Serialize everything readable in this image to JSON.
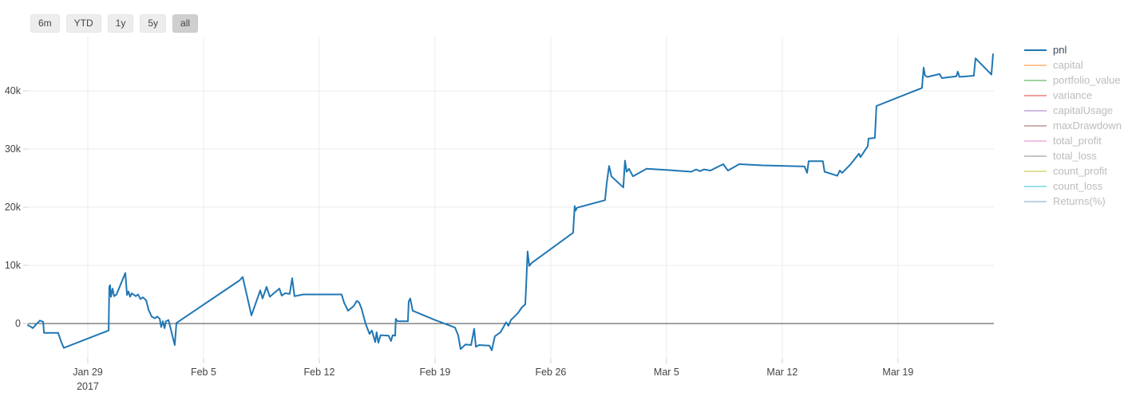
{
  "toolbar": {
    "buttons": [
      {
        "label": "6m",
        "selected": false
      },
      {
        "label": "YTD",
        "selected": false
      },
      {
        "label": "1y",
        "selected": false
      },
      {
        "label": "5y",
        "selected": false
      },
      {
        "label": "all",
        "selected": true
      }
    ]
  },
  "legend": {
    "items": [
      {
        "label": "pnl",
        "color": "#1f77b4",
        "active": true
      },
      {
        "label": "capital",
        "color": "#ff7f0e",
        "active": false
      },
      {
        "label": "portfolio_value",
        "color": "#2ca02c",
        "active": false
      },
      {
        "label": "variance",
        "color": "#d62728",
        "active": false
      },
      {
        "label": "capitalUsage",
        "color": "#9467bd",
        "active": false
      },
      {
        "label": "maxDrawdown",
        "color": "#8c564b",
        "active": false
      },
      {
        "label": "total_profit",
        "color": "#e377c2",
        "active": false
      },
      {
        "label": "total_loss",
        "color": "#7f7f7f",
        "active": false
      },
      {
        "label": "count_profit",
        "color": "#bcbd22",
        "active": false
      },
      {
        "label": "count_loss",
        "color": "#17becf",
        "active": false
      },
      {
        "label": "Returns(%)",
        "color": "#6d9bc3",
        "active": false
      }
    ]
  },
  "chart_data": {
    "type": "line",
    "title": "",
    "xlabel": "",
    "ylabel": "",
    "grid": true,
    "legend_position": "right",
    "x_unit": "days since 2017-01-25",
    "xlim": [
      0,
      58.42
    ],
    "ylim": [
      -6030,
      49320
    ],
    "x_axis": {
      "ticks": [
        {
          "t": 3.62,
          "label": "Jan 29",
          "sublabel": "2017"
        },
        {
          "t": 10.62,
          "label": "Feb 5",
          "sublabel": ""
        },
        {
          "t": 17.62,
          "label": "Feb 12",
          "sublabel": ""
        },
        {
          "t": 24.62,
          "label": "Feb 19",
          "sublabel": ""
        },
        {
          "t": 31.62,
          "label": "Feb 26",
          "sublabel": ""
        },
        {
          "t": 38.62,
          "label": "Mar 5",
          "sublabel": ""
        },
        {
          "t": 45.62,
          "label": "Mar 12",
          "sublabel": ""
        },
        {
          "t": 52.62,
          "label": "Mar 19",
          "sublabel": ""
        }
      ]
    },
    "y_axis": {
      "ticks": [
        {
          "v": 0,
          "label": "0"
        },
        {
          "v": 10000,
          "label": "10k"
        },
        {
          "v": 20000,
          "label": "20k"
        },
        {
          "v": 30000,
          "label": "30k"
        },
        {
          "v": 40000,
          "label": "40k"
        }
      ],
      "zeroline": true
    },
    "series": [
      {
        "name": "pnl",
        "color": "#1f77b4",
        "width": 2,
        "points": [
          [
            0.0,
            -300
          ],
          [
            0.14,
            -500
          ],
          [
            0.29,
            -800
          ],
          [
            0.48,
            -200
          ],
          [
            0.72,
            500
          ],
          [
            0.92,
            300
          ],
          [
            0.97,
            -1600
          ],
          [
            1.83,
            -1600
          ],
          [
            1.98,
            -2900
          ],
          [
            2.17,
            -4200
          ],
          [
            4.88,
            -1200
          ],
          [
            4.92,
            6300
          ],
          [
            4.97,
            6600
          ],
          [
            5.02,
            4600
          ],
          [
            5.12,
            6000
          ],
          [
            5.21,
            4700
          ],
          [
            5.36,
            5000
          ],
          [
            5.89,
            8700
          ],
          [
            5.99,
            4900
          ],
          [
            6.08,
            5500
          ],
          [
            6.18,
            4600
          ],
          [
            6.28,
            5200
          ],
          [
            6.52,
            4700
          ],
          [
            6.66,
            5000
          ],
          [
            6.81,
            4200
          ],
          [
            6.95,
            4500
          ],
          [
            7.15,
            4000
          ],
          [
            7.29,
            2400
          ],
          [
            7.48,
            1200
          ],
          [
            7.68,
            900
          ],
          [
            7.82,
            1200
          ],
          [
            7.97,
            800
          ],
          [
            8.06,
            -600
          ],
          [
            8.16,
            400
          ],
          [
            8.26,
            -800
          ],
          [
            8.35,
            400
          ],
          [
            8.5,
            600
          ],
          [
            8.88,
            -3700
          ],
          [
            8.98,
            100
          ],
          [
            12.79,
            7400
          ],
          [
            12.99,
            8000
          ],
          [
            13.52,
            1400
          ],
          [
            14.05,
            5700
          ],
          [
            14.19,
            4300
          ],
          [
            14.43,
            6300
          ],
          [
            14.63,
            4600
          ],
          [
            14.87,
            5200
          ],
          [
            15.21,
            6000
          ],
          [
            15.35,
            4800
          ],
          [
            15.54,
            5200
          ],
          [
            15.83,
            5100
          ],
          [
            15.98,
            7800
          ],
          [
            16.12,
            4700
          ],
          [
            16.65,
            5000
          ],
          [
            18.97,
            5000
          ],
          [
            19.12,
            3600
          ],
          [
            19.36,
            2200
          ],
          [
            19.7,
            3000
          ],
          [
            19.89,
            3900
          ],
          [
            20.03,
            3600
          ],
          [
            20.18,
            2500
          ],
          [
            20.42,
            0
          ],
          [
            20.66,
            -1800
          ],
          [
            20.8,
            -1200
          ],
          [
            21.0,
            -3200
          ],
          [
            21.09,
            -1500
          ],
          [
            21.19,
            -3300
          ],
          [
            21.33,
            -2000
          ],
          [
            21.82,
            -2100
          ],
          [
            21.96,
            -3000
          ],
          [
            22.06,
            -2000
          ],
          [
            22.21,
            -2100
          ],
          [
            22.25,
            800
          ],
          [
            22.35,
            400
          ],
          [
            22.98,
            400
          ],
          [
            23.03,
            3800
          ],
          [
            23.12,
            4300
          ],
          [
            23.27,
            2200
          ],
          [
            24.62,
            600
          ],
          [
            25.83,
            -700
          ],
          [
            26.02,
            -2000
          ],
          [
            26.17,
            -4400
          ],
          [
            26.46,
            -3600
          ],
          [
            26.8,
            -3700
          ],
          [
            26.99,
            -900
          ],
          [
            27.09,
            -4000
          ],
          [
            27.28,
            -3700
          ],
          [
            27.91,
            -3800
          ],
          [
            28.05,
            -4600
          ],
          [
            28.24,
            -2200
          ],
          [
            28.58,
            -1500
          ],
          [
            28.92,
            200
          ],
          [
            29.06,
            -400
          ],
          [
            29.21,
            600
          ],
          [
            29.64,
            1800
          ],
          [
            29.88,
            2800
          ],
          [
            30.08,
            3300
          ],
          [
            30.12,
            5600
          ],
          [
            30.22,
            12400
          ],
          [
            30.32,
            9900
          ],
          [
            30.46,
            10400
          ],
          [
            32.97,
            15600
          ],
          [
            33.07,
            20200
          ],
          [
            33.12,
            19400
          ],
          [
            33.21,
            19900
          ],
          [
            34.9,
            21200
          ],
          [
            35.0,
            24000
          ],
          [
            35.15,
            27100
          ],
          [
            35.29,
            25300
          ],
          [
            36.01,
            23400
          ],
          [
            36.11,
            28000
          ],
          [
            36.21,
            26100
          ],
          [
            36.35,
            26600
          ],
          [
            36.59,
            25300
          ],
          [
            37.42,
            26600
          ],
          [
            38.62,
            26400
          ],
          [
            40.12,
            26100
          ],
          [
            40.41,
            26500
          ],
          [
            40.65,
            26200
          ],
          [
            40.89,
            26500
          ],
          [
            41.28,
            26300
          ],
          [
            42.05,
            27400
          ],
          [
            42.34,
            26300
          ],
          [
            43.02,
            27400
          ],
          [
            44.42,
            27200
          ],
          [
            46.97,
            27000
          ],
          [
            47.12,
            25900
          ],
          [
            47.22,
            27900
          ],
          [
            48.08,
            27900
          ],
          [
            48.18,
            26100
          ],
          [
            48.95,
            25400
          ],
          [
            49.1,
            26300
          ],
          [
            49.24,
            25900
          ],
          [
            49.73,
            27300
          ],
          [
            50.26,
            29200
          ],
          [
            50.35,
            28600
          ],
          [
            50.79,
            30500
          ],
          [
            50.84,
            31800
          ],
          [
            51.22,
            31900
          ],
          [
            51.32,
            37400
          ],
          [
            54.07,
            40500
          ],
          [
            54.17,
            44000
          ],
          [
            54.26,
            42600
          ],
          [
            54.41,
            42400
          ],
          [
            55.13,
            42900
          ],
          [
            55.28,
            42200
          ],
          [
            56.15,
            42500
          ],
          [
            56.24,
            43300
          ],
          [
            56.34,
            42400
          ],
          [
            57.21,
            42600
          ],
          [
            57.31,
            45600
          ],
          [
            58.27,
            42800
          ],
          [
            58.37,
            46300
          ]
        ]
      }
    ]
  },
  "colors": {
    "grid": "#ebebeb",
    "zeroline": "#444444",
    "tick": "#d0d0d0",
    "axis_text": "#444444",
    "series_line": "#1f77b4",
    "legend_text_active": "#3b4a5a",
    "legend_text_muted": "#bcbcbc",
    "button_bg": "#ededed",
    "button_bg_selected": "#cfcfcf"
  }
}
